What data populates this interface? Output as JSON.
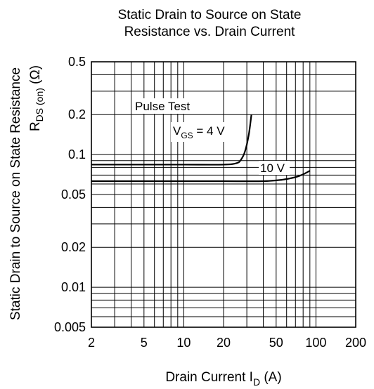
{
  "chart_data": {
    "type": "line",
    "title_line1": "Static Drain to Source on State",
    "title_line2": "Resistance vs. Drain Current",
    "xlabel": "Drain Current",
    "xlabel_symbol": "I",
    "xlabel_sub": "D",
    "xlabel_unit": "(A)",
    "ylabel_line1": "Static Drain to Source on State Resistance",
    "ylabel_symbol": "R",
    "ylabel_sub": "DS (on)",
    "ylabel_unit": "(Ω)",
    "x_scale": "log",
    "y_scale": "log",
    "xlim": [
      2,
      200
    ],
    "ylim": [
      0.005,
      0.5
    ],
    "x_ticks": [
      {
        "value": 2,
        "label": "2"
      },
      {
        "value": 5,
        "label": "5"
      },
      {
        "value": 10,
        "label": "10"
      },
      {
        "value": 20,
        "label": "20"
      },
      {
        "value": 50,
        "label": "50"
      },
      {
        "value": 100,
        "label": "100"
      },
      {
        "value": 200,
        "label": "200"
      }
    ],
    "y_ticks": [
      {
        "value": 0.5,
        "label": "0.5"
      },
      {
        "value": 0.2,
        "label": "0.2"
      },
      {
        "value": 0.1,
        "label": "0.1"
      },
      {
        "value": 0.05,
        "label": "0.05"
      },
      {
        "value": 0.02,
        "label": "0.02"
      },
      {
        "value": 0.01,
        "label": "0.01"
      },
      {
        "value": 0.005,
        "label": "0.005"
      }
    ],
    "grid": true,
    "annotation_pulse": "Pulse Test",
    "series": [
      {
        "label_symbol": "V",
        "label_sub": "GS",
        "label_value": " = 4 V",
        "color": "#000000",
        "x": [
          2,
          5,
          10,
          20,
          25,
          27,
          29,
          31,
          32.5
        ],
        "y": [
          0.084,
          0.084,
          0.084,
          0.084,
          0.086,
          0.091,
          0.105,
          0.14,
          0.2
        ]
      },
      {
        "label": "10 V",
        "color": "#000000",
        "x": [
          2,
          5,
          10,
          20,
          40,
          55,
          70,
          80,
          90
        ],
        "y": [
          0.063,
          0.063,
          0.063,
          0.063,
          0.063,
          0.0645,
          0.0675,
          0.071,
          0.0755
        ]
      }
    ]
  }
}
